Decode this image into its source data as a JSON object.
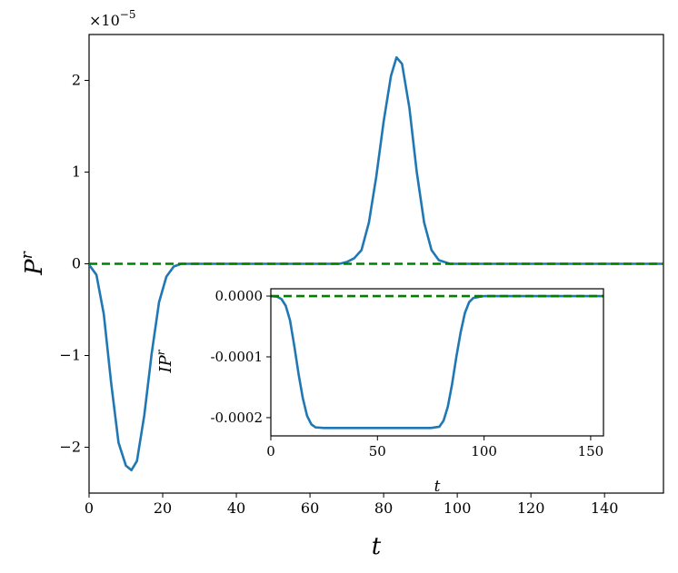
{
  "chart_data": [
    {
      "type": "line",
      "role": "main",
      "title": "",
      "xlabel": "t",
      "ylabel": "P",
      "ylabel_superscript": "r",
      "scale_prefix": "×10",
      "scale_exponent": "−5",
      "xlim": [
        0,
        156
      ],
      "ylim": [
        -2.5,
        2.5
      ],
      "xticks": [
        0,
        20,
        40,
        60,
        80,
        100,
        120,
        140
      ],
      "yticks": [
        -2,
        -1,
        0,
        1,
        2
      ],
      "xtick_labels": [
        "0",
        "20",
        "40",
        "60",
        "80",
        "100",
        "120",
        "140"
      ],
      "ytick_labels": [
        "−2",
        "−1",
        "0",
        "1",
        "2"
      ],
      "grid": false,
      "series": [
        {
          "color": "#1f77b4",
          "style": "solid",
          "x": [
            0,
            2,
            4,
            6,
            8,
            10,
            11.5,
            13,
            15,
            17,
            19,
            21,
            23,
            25,
            30,
            40,
            50,
            60,
            65,
            68,
            70,
            72,
            74,
            76,
            78,
            80,
            82,
            83.5,
            85,
            87,
            89,
            91,
            93,
            95,
            98,
            100,
            110,
            120,
            130,
            140,
            150,
            156
          ],
          "y": [
            -0.01,
            -0.12,
            -0.55,
            -1.3,
            -1.95,
            -2.2,
            -2.25,
            -2.15,
            -1.65,
            -0.98,
            -0.42,
            -0.14,
            -0.03,
            0.0,
            0.0,
            0.0,
            0.0,
            0.0,
            0.0,
            0.0,
            0.02,
            0.06,
            0.15,
            0.45,
            0.95,
            1.55,
            2.05,
            2.25,
            2.18,
            1.7,
            1.0,
            0.45,
            0.15,
            0.04,
            0.0,
            0.0,
            0.0,
            0.0,
            0.0,
            0.0,
            0.0,
            0.0
          ]
        },
        {
          "color": "#008000",
          "style": "dashed",
          "x": [
            0,
            156
          ],
          "y": [
            0,
            0
          ]
        }
      ]
    },
    {
      "type": "line",
      "role": "inset",
      "title": "",
      "xlabel": "t",
      "ylabel": "IP",
      "ylabel_superscript": "r",
      "xlim": [
        0,
        156
      ],
      "ylim": [
        -0.00023,
        1.2e-05
      ],
      "xticks": [
        0,
        50,
        100,
        150
      ],
      "yticks": [
        0.0,
        -0.0001,
        -0.0002
      ],
      "xtick_labels": [
        "0",
        "50",
        "100",
        "150"
      ],
      "ytick_labels": [
        "0.0000",
        "-0.0001",
        "-0.0002"
      ],
      "grid": false,
      "series": [
        {
          "color": "#1f77b4",
          "style": "solid",
          "x": [
            0,
            3,
            5,
            7,
            9,
            11,
            13,
            15,
            17,
            19,
            21,
            25,
            40,
            60,
            75,
            79,
            81,
            83,
            85,
            87,
            89,
            91,
            93,
            95,
            100,
            120,
            140,
            156
          ],
          "y": [
            0,
            -1e-06,
            -5e-06,
            -1.6e-05,
            -4e-05,
            -8.2e-05,
            -0.000128,
            -0.000168,
            -0.000197,
            -0.000211,
            -0.000216,
            -0.000217,
            -0.000217,
            -0.000217,
            -0.000217,
            -0.000215,
            -0.000205,
            -0.000182,
            -0.000145,
            -0.0001,
            -6e-05,
            -2.8e-05,
            -1e-05,
            -3e-06,
            0,
            0,
            0,
            0
          ]
        },
        {
          "color": "#008000",
          "style": "dashed",
          "x": [
            0,
            156
          ],
          "y": [
            0,
            0
          ]
        }
      ]
    }
  ]
}
